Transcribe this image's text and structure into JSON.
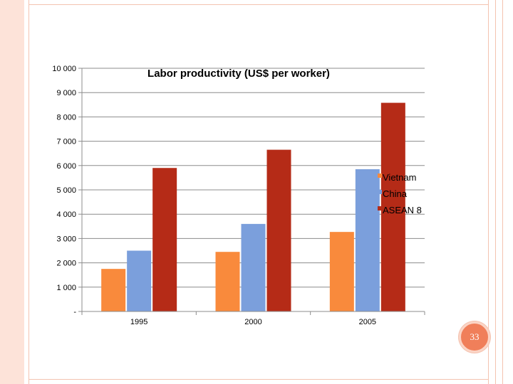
{
  "slide": {
    "page_number": "33"
  },
  "colors": {
    "vietnam": "#f98a3c",
    "china": "#7b9fdc",
    "asean": "#b52b17",
    "frame": "#fde3d9",
    "badge": "#f07f5a"
  },
  "chart_data": {
    "type": "bar",
    "title": "Labor productivity (US$ per worker)",
    "categories": [
      "1995",
      "2000",
      "2005"
    ],
    "series": [
      {
        "name": "Vietnam",
        "values": [
          1750,
          2450,
          3270
        ]
      },
      {
        "name": "China",
        "values": [
          2500,
          3600,
          5850
        ]
      },
      {
        "name": "ASEAN 8",
        "values": [
          5900,
          6650,
          8580
        ]
      }
    ],
    "ylim": [
      0,
      10000
    ],
    "yticks": [
      0,
      1000,
      2000,
      3000,
      4000,
      5000,
      6000,
      7000,
      8000,
      9000,
      10000
    ],
    "ytick_labels": [
      "-",
      "1 000",
      "2 000",
      "3 000",
      "4 000",
      "5 000",
      "6 000",
      "7 000",
      "8 000",
      "9 000",
      "10 000"
    ],
    "grid": true,
    "legend_position": "right"
  }
}
